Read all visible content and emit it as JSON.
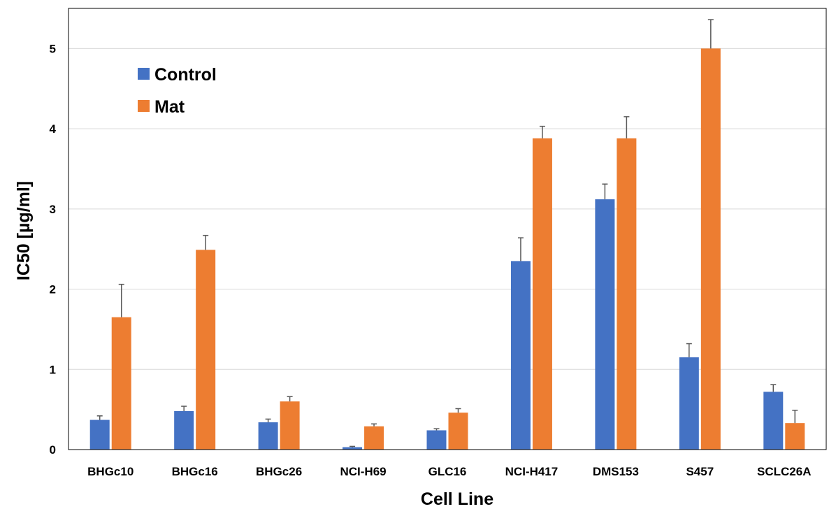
{
  "chart_data": {
    "type": "bar",
    "xlabel": "Cell Line",
    "ylabel": "IC50 [µg/ml]",
    "ylim": [
      0,
      5.5
    ],
    "yticks": [
      0,
      1,
      2,
      3,
      4,
      5
    ],
    "grid": true,
    "legend_position": "top-left",
    "categories": [
      "BHGc10",
      "BHGc16",
      "BHGc26",
      "NCI-H69",
      "GLC16",
      "NCI-H417",
      "DMS153",
      "S457",
      "SCLC26A"
    ],
    "series": [
      {
        "name": "Control",
        "color": "#4472C4",
        "values": [
          0.37,
          0.48,
          0.34,
          0.03,
          0.24,
          2.35,
          3.12,
          1.15,
          0.72
        ],
        "errors": [
          0.05,
          0.06,
          0.04,
          0.01,
          0.02,
          0.29,
          0.19,
          0.17,
          0.09
        ]
      },
      {
        "name": "Mat",
        "color": "#ED7D31",
        "values": [
          1.65,
          2.49,
          0.6,
          0.29,
          0.46,
          3.88,
          3.88,
          5.0,
          0.33
        ],
        "errors": [
          0.41,
          0.18,
          0.06,
          0.03,
          0.05,
          0.15,
          0.27,
          0.36,
          0.16
        ]
      }
    ]
  }
}
